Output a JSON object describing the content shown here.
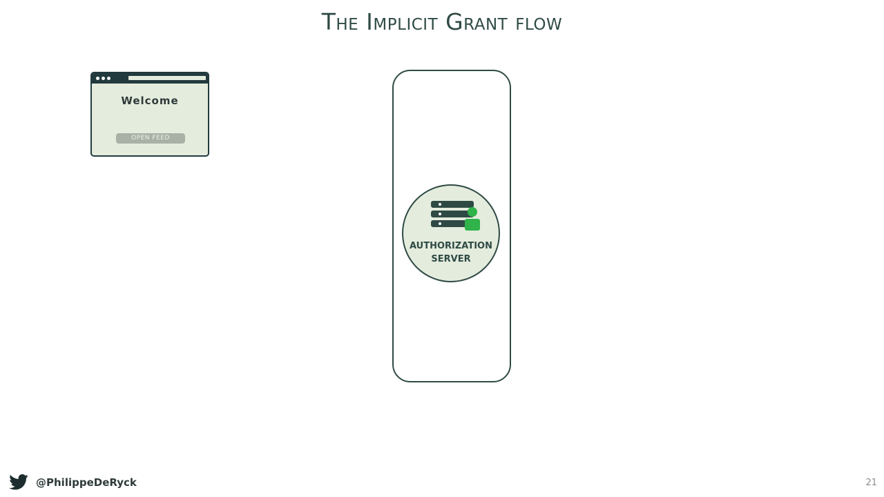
{
  "slide": {
    "title": "The Implicit Grant flow",
    "page_number": "21"
  },
  "browser_window": {
    "heading": "Welcome",
    "button_label": "OPEN FEED"
  },
  "authorization_server": {
    "label_line1": "AUTHORIZATION",
    "label_line2": "SERVER",
    "icon": "server-user-icon"
  },
  "footer": {
    "handle": "@PhilippeDeRyck",
    "icon": "twitter-icon"
  },
  "colors": {
    "dark_green": "#2f4a45",
    "navy": "#223a3e",
    "light_green": "#e4ecdd",
    "accent_green": "#2fb34a",
    "twitter_blue": "#1d2d2f"
  }
}
